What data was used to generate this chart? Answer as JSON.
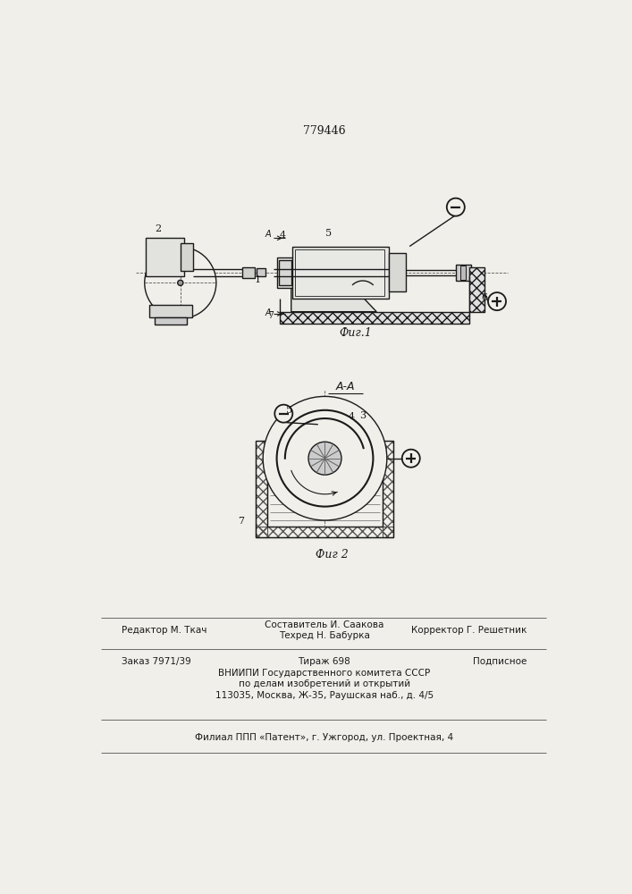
{
  "patent_number": "779446",
  "bg": "#f0efea",
  "lc": "#1a1a1a",
  "fig1_label": "Фиг.1",
  "fig2_label": "Фиг 2",
  "section_label": "А-А",
  "editor_line": "Редактор М. Ткач",
  "composer_line1": "Составитель И. Саакова",
  "composer_line2": "Техред Н. Бабурка",
  "corrector_line": "Корректор Г. Решетник",
  "order_line": "Заказ 7971/39",
  "tirazh_line": "Тираж 698",
  "podpisnoe_line": "Подписное",
  "vniip_line1": "ВНИИПИ Государственного комитета СССР",
  "vniip_line2": "по делам изобретений и открытий",
  "vniip_line3": "113035, Москва, Ж-35, Раушская наб., д. 4/5",
  "filial_line": "Филиал ППП «Патент», г. Ужгород, ул. Проектная, 4"
}
